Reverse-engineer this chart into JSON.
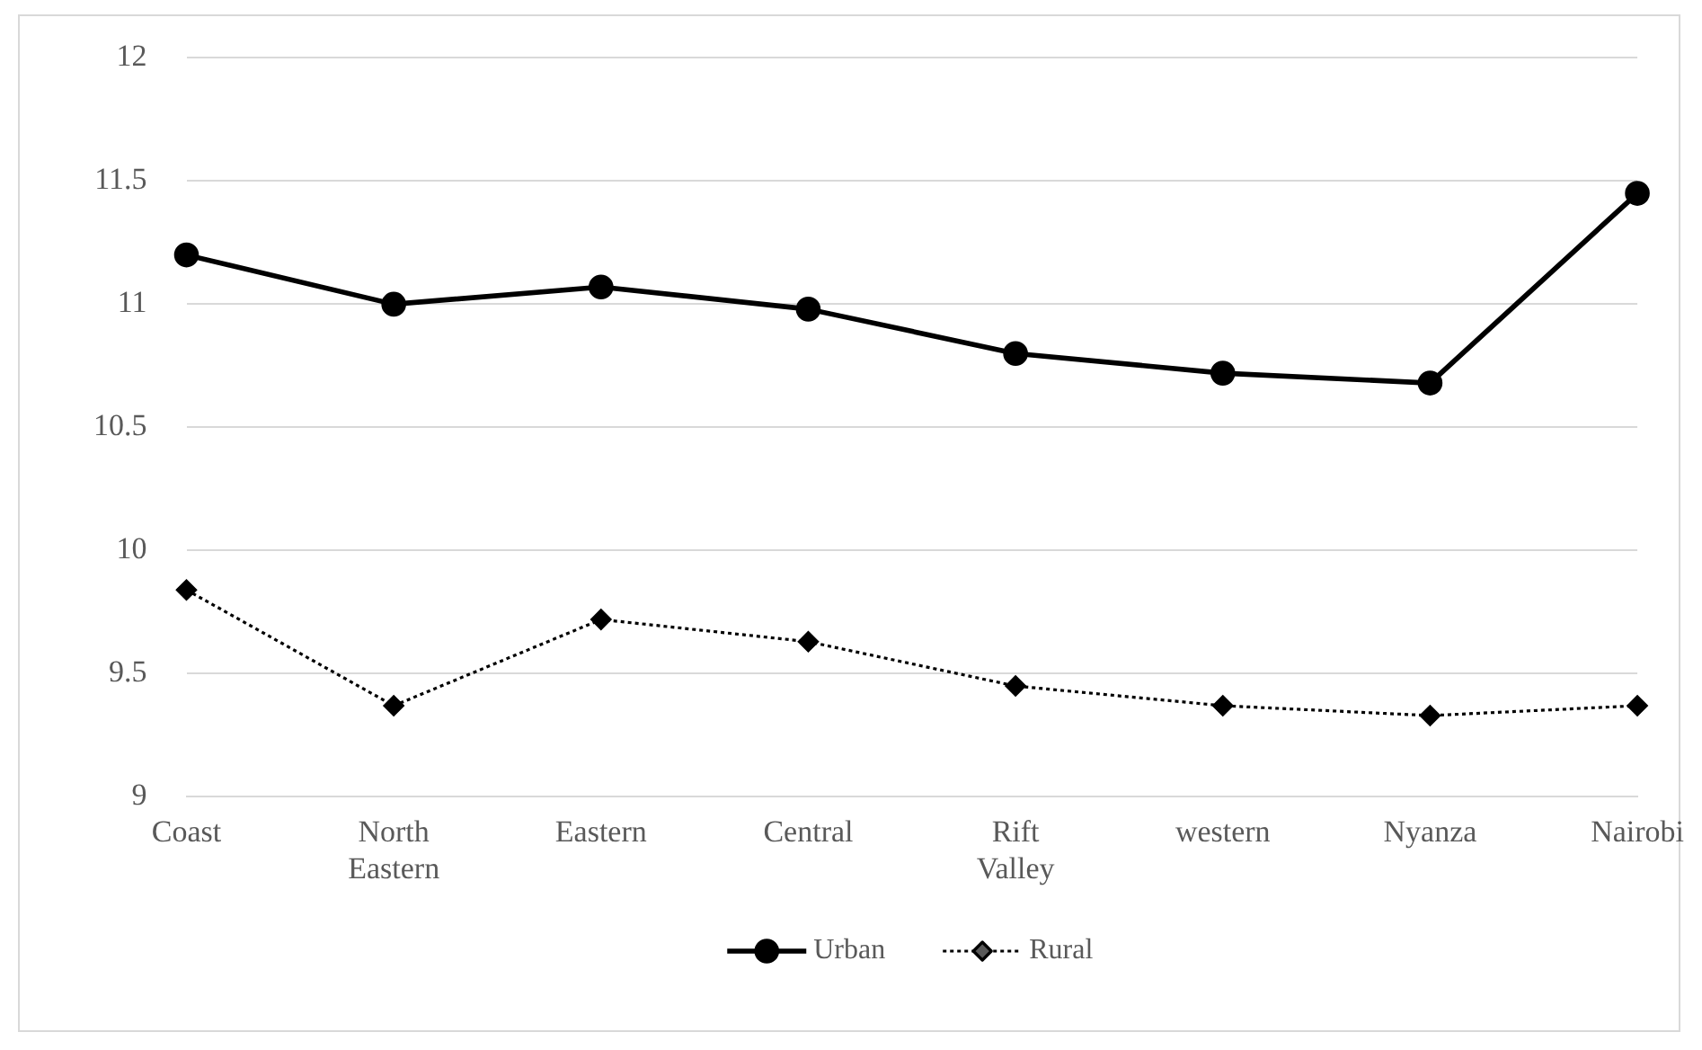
{
  "chart_data": {
    "type": "line",
    "categories": [
      "Coast",
      "North Eastern",
      "Eastern",
      "Central",
      "Rift Valley",
      "western",
      "Nyanza",
      "Nairobi"
    ],
    "series": [
      {
        "name": "Urban",
        "color": "#000000",
        "marker": "circle",
        "line_style": "solid",
        "values": [
          11.2,
          11.0,
          11.07,
          10.98,
          10.8,
          10.72,
          10.68,
          11.45
        ]
      },
      {
        "name": "Rural",
        "color": "#000000",
        "marker": "diamond",
        "line_style": "dotted",
        "values": [
          9.84,
          9.37,
          9.72,
          9.63,
          9.45,
          9.37,
          9.33,
          9.37
        ]
      }
    ],
    "ylim": [
      9,
      12
    ],
    "yticks": [
      9,
      9.5,
      10,
      10.5,
      11,
      11.5,
      12
    ],
    "grid": "y",
    "legend": "bottom"
  }
}
